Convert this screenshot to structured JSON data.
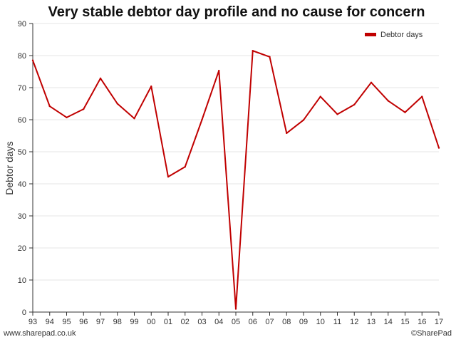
{
  "chart_data": {
    "type": "line",
    "title": "Very stable debtor day profile and no cause for concern",
    "xlabel": "",
    "ylabel": "Debtor days",
    "categories": [
      "93",
      "94",
      "95",
      "96",
      "97",
      "98",
      "99",
      "00",
      "01",
      "02",
      "03",
      "04",
      "05",
      "06",
      "07",
      "08",
      "09",
      "10",
      "11",
      "12",
      "13",
      "14",
      "15",
      "16",
      "17"
    ],
    "series": [
      {
        "name": "Debtor days",
        "color": "#c00000",
        "values": [
          78.5,
          64.2,
          60.7,
          63.3,
          72.9,
          65.0,
          60.4,
          70.4,
          42.2,
          45.3,
          60.0,
          75.3,
          1.0,
          81.5,
          79.6,
          55.8,
          59.9,
          67.2,
          61.7,
          64.7,
          71.6,
          65.9,
          62.3,
          67.2,
          51.2
        ]
      }
    ],
    "ylim": [
      0,
      90
    ],
    "yticks": [
      0,
      10,
      20,
      30,
      40,
      50,
      60,
      70,
      80,
      90
    ],
    "grid": true,
    "legend_position": "top-right"
  },
  "footer": {
    "left": "www.sharepad.co.uk",
    "right": "©SharePad"
  }
}
